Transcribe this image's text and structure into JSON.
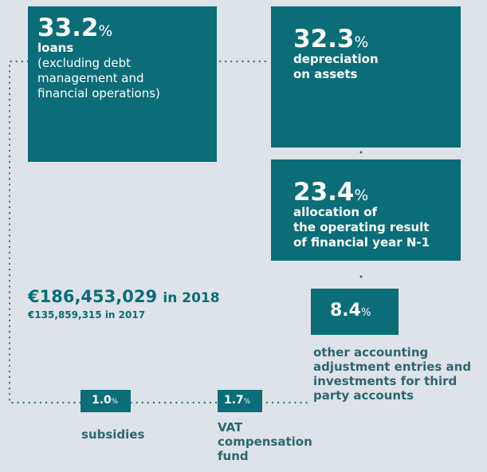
{
  "total": {
    "amount": "€186,453,029",
    "year": "in 2018"
  },
  "previous": {
    "amount": "€135,859,315",
    "year": "in 2017"
  },
  "items": [
    {
      "value": 33.2,
      "unit": "%",
      "label_lines": [
        "loans"
      ],
      "note_lines": [
        "(excluding debt",
        "management and",
        "financial operations)"
      ]
    },
    {
      "value": 32.3,
      "unit": "%",
      "label_lines": [
        "depreciation",
        "on assets"
      ]
    },
    {
      "value": 23.4,
      "unit": "%",
      "label_lines": [
        "allocation of",
        "the operating result",
        "of financial year N-1"
      ]
    },
    {
      "value": 8.4,
      "unit": "%",
      "label_lines": [
        "other accounting",
        "adjustment entries and",
        "investments for third",
        "party accounts"
      ]
    },
    {
      "value": 1.0,
      "value_label": "1.0",
      "unit": "%",
      "label_lines": [
        "subsidies"
      ]
    },
    {
      "value": 1.7,
      "unit": "%",
      "label_lines": [
        "VAT",
        "compensation",
        "fund"
      ]
    }
  ]
}
